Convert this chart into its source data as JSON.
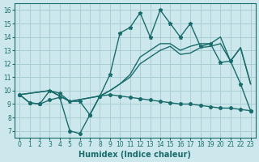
{
  "bg_color": "#cce8ec",
  "grid_color": "#aacdd4",
  "line_color": "#1a6b6b",
  "xlabel": "Humidex (Indice chaleur)",
  "xlim": [
    -0.5,
    23.5
  ],
  "ylim": [
    6.5,
    16.5
  ],
  "xticks": [
    0,
    1,
    2,
    3,
    4,
    5,
    6,
    7,
    8,
    9,
    10,
    11,
    12,
    13,
    14,
    15,
    16,
    17,
    18,
    19,
    20,
    21,
    22,
    23
  ],
  "yticks": [
    7,
    8,
    9,
    10,
    11,
    12,
    13,
    14,
    15,
    16
  ],
  "line1_x": [
    0,
    1,
    2,
    3,
    4,
    5,
    6,
    7,
    8,
    9,
    10,
    11,
    12,
    13,
    14,
    15,
    16,
    17,
    18,
    19,
    20,
    21,
    22,
    23
  ],
  "line1_y": [
    9.7,
    9.1,
    9.0,
    9.3,
    9.5,
    7.0,
    6.8,
    8.2,
    9.6,
    9.7,
    9.6,
    9.5,
    9.4,
    9.3,
    9.2,
    9.1,
    9.0,
    9.0,
    8.9,
    8.8,
    8.7,
    8.7,
    8.6,
    8.5
  ],
  "line2_x": [
    0,
    1,
    2,
    3,
    4,
    5,
    6,
    7,
    8,
    9,
    10,
    11,
    12,
    13,
    14,
    15,
    16,
    17,
    18,
    19,
    20,
    21,
    22,
    23
  ],
  "line2_y": [
    9.7,
    9.1,
    9.0,
    10.0,
    9.8,
    9.2,
    9.2,
    8.2,
    9.6,
    11.2,
    14.3,
    14.7,
    15.8,
    14.0,
    16.0,
    15.0,
    14.0,
    15.0,
    13.3,
    13.5,
    12.1,
    12.2,
    10.5,
    8.5
  ],
  "line3_x": [
    0,
    3,
    5,
    8,
    9,
    10,
    11,
    12,
    13,
    14,
    15,
    16,
    17,
    18,
    19,
    20,
    21,
    22,
    23
  ],
  "line3_y": [
    9.7,
    10.0,
    9.2,
    9.6,
    10.0,
    10.5,
    11.0,
    12.0,
    12.5,
    13.0,
    13.3,
    12.7,
    12.8,
    13.2,
    13.3,
    13.5,
    12.2,
    13.2,
    10.5
  ],
  "line4_x": [
    0,
    3,
    5,
    8,
    9,
    10,
    11,
    12,
    13,
    14,
    15,
    16,
    17,
    18,
    19,
    20,
    21,
    22,
    23
  ],
  "line4_y": [
    9.7,
    10.0,
    9.2,
    9.6,
    10.0,
    10.5,
    11.2,
    12.5,
    13.0,
    13.5,
    13.5,
    13.0,
    13.3,
    13.5,
    13.5,
    14.0,
    12.2,
    13.2,
    10.5
  ]
}
